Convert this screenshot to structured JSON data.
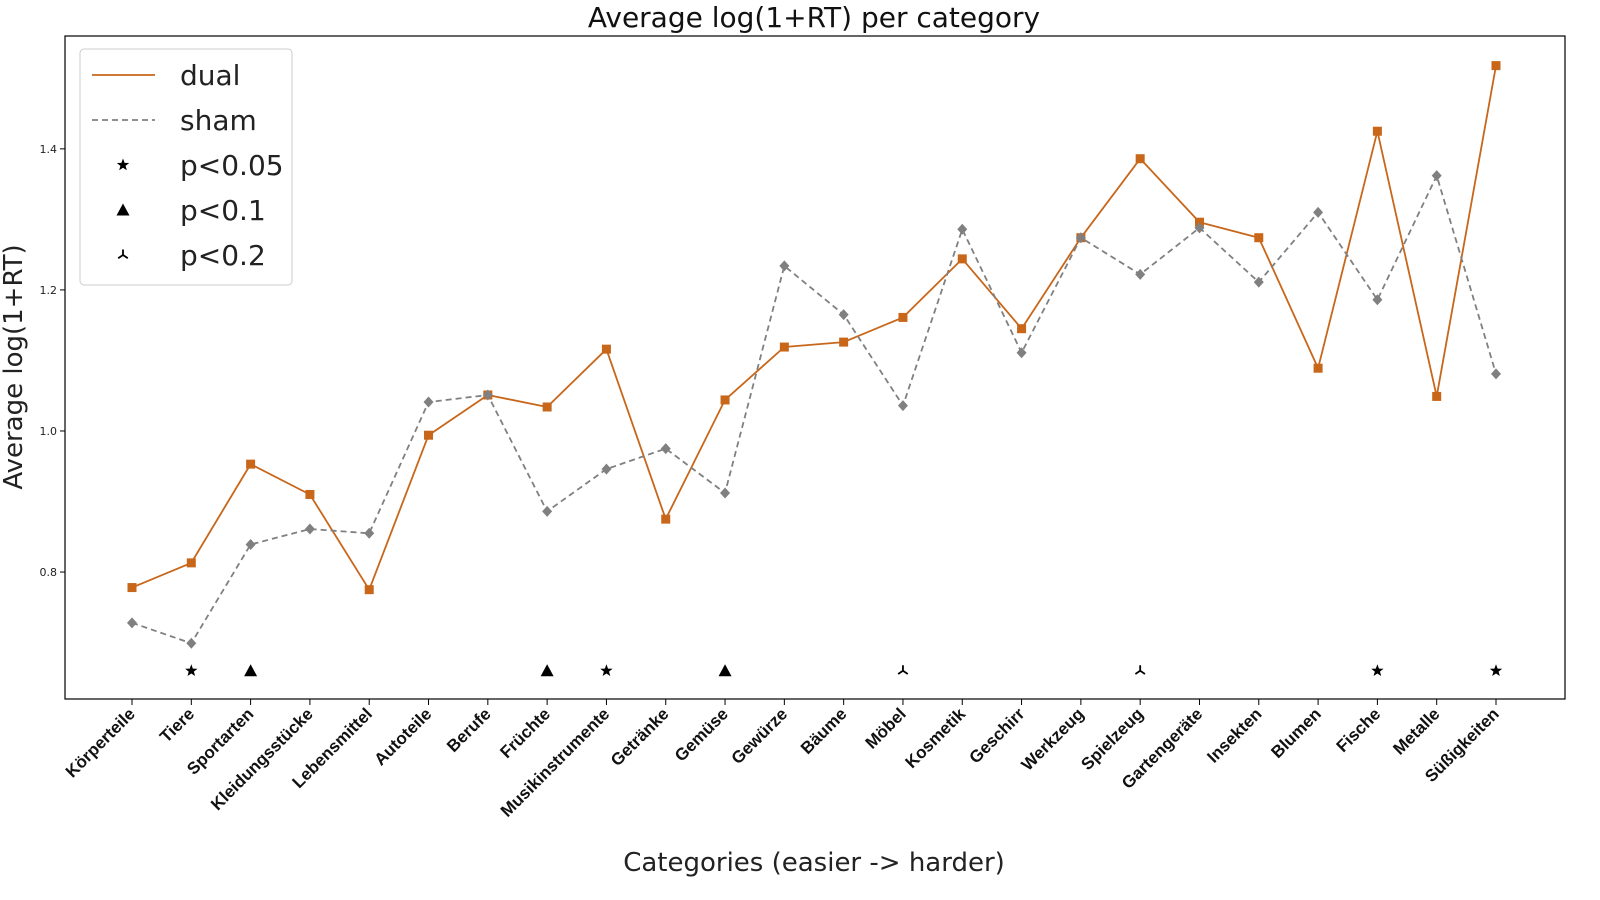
{
  "chart_data": {
    "type": "line",
    "title": "Average log(1+RT) per category",
    "xlabel": "Categories (easier -> harder)",
    "ylabel": "Average log(1+RT)",
    "ylim": [
      0.62,
      1.56
    ],
    "yticks": [
      0.8,
      1.0,
      1.2,
      1.4
    ],
    "ytick_labels": [
      "0.8",
      "1.0",
      "1.2",
      "1.4"
    ],
    "grid": false,
    "legend_position": "top-left",
    "categories": [
      "Körperteile",
      "Tiere",
      "Sportarten",
      "Kleidungsstücke",
      "Lebensmittel",
      "Autoteile",
      "Berufe",
      "Früchte",
      "Musikinstrumente",
      "Getränke",
      "Gemüse",
      "Gewürze",
      "Bäume",
      "Möbel",
      "Kosmetik",
      "Geschirr",
      "Werkzeug",
      "Spielzeug",
      "Gartengeräte",
      "Insekten",
      "Blumen",
      "Fische",
      "Metalle",
      "Süßigkeiten"
    ],
    "series": [
      {
        "name": "dual",
        "color": "#c8661a",
        "line_style": "solid",
        "marker": "square",
        "values": [
          0.778,
          0.813,
          0.953,
          0.91,
          0.775,
          0.994,
          1.051,
          1.034,
          1.116,
          0.875,
          1.044,
          1.119,
          1.126,
          1.161,
          1.244,
          1.145,
          1.274,
          1.386,
          1.296,
          1.274,
          1.089,
          1.425,
          1.049,
          1.518
        ]
      },
      {
        "name": "sham",
        "color": "#808080",
        "line_style": "dashed",
        "marker": "diamond",
        "values": [
          0.728,
          0.699,
          0.839,
          0.861,
          0.855,
          1.041,
          1.051,
          0.886,
          0.946,
          0.975,
          0.912,
          1.234,
          1.165,
          1.036,
          1.286,
          1.111,
          1.274,
          1.222,
          1.288,
          1.211,
          1.31,
          1.186,
          1.362,
          1.081
        ]
      }
    ],
    "significance_y": 0.66,
    "significance": [
      {
        "category": "Tiere",
        "level": "p<0.05"
      },
      {
        "category": "Sportarten",
        "level": "p<0.1"
      },
      {
        "category": "Früchte",
        "level": "p<0.1"
      },
      {
        "category": "Musikinstrumente",
        "level": "p<0.05"
      },
      {
        "category": "Gemüse",
        "level": "p<0.1"
      },
      {
        "category": "Möbel",
        "level": "p<0.2"
      },
      {
        "category": "Spielzeug",
        "level": "p<0.2"
      },
      {
        "category": "Fische",
        "level": "p<0.05"
      },
      {
        "category": "Süßigkeiten",
        "level": "p<0.05"
      }
    ],
    "legend": [
      {
        "label": "dual",
        "kind": "line",
        "color": "#c8661a",
        "line_style": "solid"
      },
      {
        "label": "sham",
        "kind": "line",
        "color": "#808080",
        "line_style": "dashed"
      },
      {
        "label": "p<0.05",
        "kind": "marker",
        "marker": "star",
        "color": "#000000"
      },
      {
        "label": "p<0.1",
        "kind": "marker",
        "marker": "triangle",
        "color": "#000000"
      },
      {
        "label": "p<0.2",
        "kind": "marker",
        "marker": "tri-down",
        "color": "#000000"
      }
    ]
  }
}
